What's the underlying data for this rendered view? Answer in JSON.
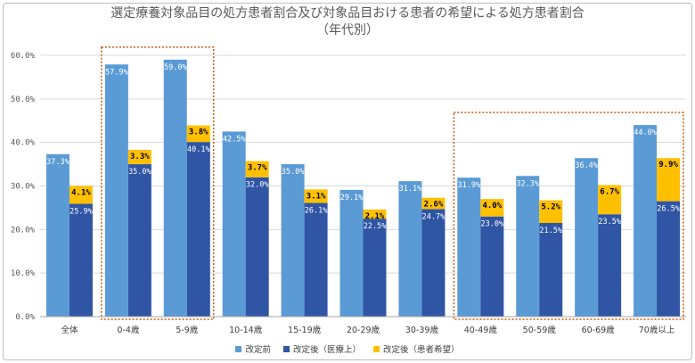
{
  "title": "選定療養対象品目の処方患者割合及び対象品目おける患者の希望による処方患者割合",
  "subtitle": "（年代別）",
  "colors": {
    "before": "#5b9bd5",
    "after_medical": "#2f55a4",
    "after_patient": "#ffc000",
    "highlight": "#c55a11"
  },
  "chart_data": {
    "type": "bar",
    "title": "選定療養対象品目の処方患者割合及び対象品目おける患者の希望による処方患者割合（年代別）",
    "categories": [
      "全体",
      "0-4歳",
      "5-9歳",
      "10-14歳",
      "15-19歳",
      "20-29歳",
      "30-39歳",
      "40-49歳",
      "50-59歳",
      "60-69歳",
      "70歳以上"
    ],
    "series": [
      {
        "name": "改定前",
        "values": [
          37.3,
          57.9,
          59.0,
          42.5,
          35.0,
          29.1,
          31.1,
          31.9,
          32.3,
          36.4,
          44.0
        ],
        "labels": [
          "37.3%",
          "57.9%",
          "59.0%",
          "42.5%",
          "35.0%",
          "29.1%",
          "31.1%",
          "31.9%",
          "32.3%",
          "36.4%",
          "44.0%"
        ]
      },
      {
        "name": "改定後（医療上）",
        "values": [
          25.9,
          35.0,
          40.1,
          32.0,
          26.1,
          22.5,
          24.7,
          23.0,
          21.5,
          23.5,
          26.5
        ],
        "labels": [
          "25.9%",
          "35.0%",
          "40.1%",
          "32.0%",
          "26.1%",
          "22.5%",
          "24.7%",
          "23.0%",
          "21.5%",
          "23.5%",
          "26.5%"
        ]
      },
      {
        "name": "改定後（患者希望）",
        "values": [
          4.1,
          3.3,
          3.8,
          3.7,
          3.1,
          2.1,
          2.6,
          4.0,
          5.2,
          6.7,
          9.9
        ],
        "labels": [
          "4.1%",
          "3.3%",
          "3.8%",
          "3.7%",
          "3.1%",
          "2.1%",
          "2.6%",
          "4.0%",
          "5.2%",
          "6.7%",
          "9.9%"
        ]
      }
    ],
    "stacked_series": [
      "改定後（医療上）",
      "改定後（患者希望）"
    ],
    "ylim": [
      0,
      60
    ],
    "yticks": [
      "0.0%",
      "10.0%",
      "20.0%",
      "30.0%",
      "40.0%",
      "50.0%",
      "60.0%"
    ],
    "grid": true,
    "legend_position": "bottom",
    "highlight_groups": [
      [
        1,
        2
      ],
      [
        7,
        10
      ]
    ]
  }
}
